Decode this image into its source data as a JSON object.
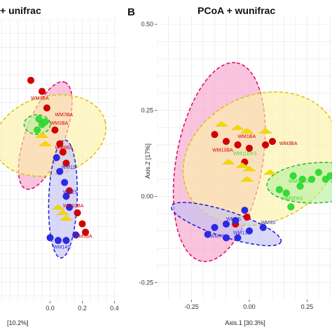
{
  "chart_data": [
    {
      "type": "scatter",
      "panel": "A",
      "title": "+ unifrac",
      "xlabel": "[10.2%]",
      "ylabel": "",
      "xlim": [
        -0.32,
        0.42
      ],
      "ylim": [
        -0.52,
        0.5
      ],
      "x_ticks": [
        "0.0",
        "0.2",
        "0.4"
      ],
      "y_ticks": [],
      "grid": true,
      "series": [
        {
          "color": "#d40000",
          "points": [
            [
              -0.12,
              0.28
            ],
            [
              -0.05,
              0.24
            ],
            [
              -0.02,
              0.18
            ],
            [
              0.03,
              0.1
            ],
            [
              0.06,
              0.05
            ],
            [
              0.08,
              0.02
            ],
            [
              0.1,
              -0.02
            ],
            [
              0.12,
              -0.12
            ],
            [
              0.17,
              -0.2
            ],
            [
              0.2,
              -0.24
            ],
            [
              0.22,
              -0.27
            ]
          ]
        },
        {
          "color": "#2a2ae6",
          "points": [
            [
              0.04,
              0.0
            ],
            [
              0.06,
              -0.05
            ],
            [
              0.09,
              -0.09
            ],
            [
              0.1,
              -0.14
            ],
            [
              0.12,
              -0.18
            ],
            [
              0.0,
              -0.29
            ],
            [
              0.05,
              -0.3
            ],
            [
              0.1,
              -0.3
            ],
            [
              0.16,
              -0.28
            ]
          ]
        },
        {
          "color": "#33dd33",
          "points": [
            [
              -0.07,
              0.14
            ],
            [
              -0.05,
              0.12
            ],
            [
              -0.08,
              0.1
            ],
            [
              -0.03,
              0.13
            ]
          ]
        },
        {
          "color": "#f5d800",
          "points": [
            [
              -0.05,
              0.08
            ],
            [
              -0.03,
              0.05
            ],
            [
              0.05,
              -0.18
            ],
            [
              0.08,
              -0.2
            ],
            [
              0.1,
              -0.22
            ]
          ]
        }
      ],
      "ellipses": [
        {
          "color": "#e0006a",
          "fill": "#f5a0c8",
          "cx": -0.03,
          "cy": 0.08,
          "rx": 0.26,
          "ry": 0.09,
          "angle_deg": -70
        },
        {
          "color": "#d8c400",
          "fill": "#fbf2a6",
          "cx": 0.0,
          "cy": 0.08,
          "rx": 0.26,
          "ry": 0.18,
          "angle_deg": -15
        },
        {
          "color": "#2ab82a",
          "fill": "#b8f0a0",
          "cx": -0.08,
          "cy": 0.12,
          "rx": 0.06,
          "ry": 0.045,
          "angle_deg": 0
        },
        {
          "color": "#2020c8",
          "fill": "#c4c0f5",
          "cx": 0.08,
          "cy": -0.15,
          "rx": 0.27,
          "ry": 0.065,
          "angle_deg": -88
        }
      ],
      "labels": [
        {
          "text": "WM3BA",
          "x": -0.12,
          "y": 0.21,
          "color": "#d40000"
        },
        {
          "text": "WM7BA",
          "x": 0.03,
          "y": 0.15,
          "color": "#d40000"
        },
        {
          "text": "WM1BA",
          "x": 0.0,
          "y": 0.12,
          "color": "#d40000"
        },
        {
          "text": "WM8BA",
          "x": 0.03,
          "y": 0.03,
          "color": "#d40000"
        },
        {
          "text": "WM1S",
          "x": 0.07,
          "y": -0.04,
          "color": "#2a2ae6"
        },
        {
          "text": "WM2S",
          "x": 0.08,
          "y": -0.13,
          "color": "#2a2ae6"
        },
        {
          "text": "WM10BA",
          "x": 0.08,
          "y": -0.18,
          "color": "#d40000"
        },
        {
          "text": "WM5BA",
          "x": 0.15,
          "y": -0.29,
          "color": "#d40000"
        },
        {
          "text": "WM14S",
          "x": 0.02,
          "y": -0.33,
          "color": "#2a2ae6"
        }
      ]
    },
    {
      "type": "scatter",
      "panel": "B",
      "title": "PCoA + wunifrac",
      "xlabel": "Axis.1   [30.3%]",
      "ylabel": "Axis.2   [17%]",
      "xlim": [
        -0.4,
        0.37
      ],
      "ylim": [
        -0.3,
        0.53
      ],
      "x_ticks": [
        "-0.25",
        "0.00",
        "0.25"
      ],
      "y_ticks": [
        "-0.25",
        "0.00",
        "0.25",
        "0.50"
      ],
      "grid": true,
      "series": [
        {
          "color": "#d40000",
          "points": [
            [
              -0.15,
              0.18
            ],
            [
              -0.1,
              0.16
            ],
            [
              -0.05,
              0.15
            ],
            [
              0.0,
              0.14
            ],
            [
              0.07,
              0.15
            ],
            [
              0.1,
              0.16
            ],
            [
              -0.02,
              0.1
            ],
            [
              -0.01,
              -0.06
            ],
            [
              -0.06,
              -0.08
            ]
          ]
        },
        {
          "color": "#2a2ae6",
          "points": [
            [
              -0.02,
              -0.04
            ],
            [
              -0.06,
              -0.07
            ],
            [
              -0.1,
              -0.08
            ],
            [
              -0.15,
              -0.09
            ],
            [
              -0.18,
              -0.11
            ],
            [
              -0.1,
              -0.12
            ],
            [
              -0.05,
              -0.12
            ],
            [
              0.0,
              -0.1
            ],
            [
              0.06,
              -0.09
            ]
          ]
        },
        {
          "color": "#33dd33",
          "points": [
            [
              0.19,
              0.06
            ],
            [
              0.23,
              0.05
            ],
            [
              0.27,
              0.05
            ],
            [
              0.3,
              0.07
            ],
            [
              0.33,
              0.05
            ],
            [
              0.35,
              0.06
            ],
            [
              0.22,
              0.03
            ],
            [
              0.16,
              0.01
            ],
            [
              0.18,
              -0.03
            ],
            [
              0.13,
              0.02
            ]
          ]
        },
        {
          "color": "#f5d800",
          "points": [
            [
              -0.12,
              0.21
            ],
            [
              -0.05,
              0.2
            ],
            [
              -0.01,
              0.19
            ],
            [
              0.07,
              0.19
            ],
            [
              -0.09,
              0.1
            ],
            [
              -0.03,
              0.09
            ],
            [
              0.0,
              0.08
            ],
            [
              -0.01,
              0.05
            ],
            [
              0.09,
              0.07
            ]
          ]
        }
      ],
      "ellipses": [
        {
          "color": "#e0006a",
          "fill": "#f5a0c8",
          "cx": -0.13,
          "cy": 0.1,
          "rx": 0.35,
          "ry": 0.15,
          "angle_deg": -80
        },
        {
          "color": "#d8c400",
          "fill": "#fbf2a6",
          "cx": 0.05,
          "cy": 0.11,
          "rx": 0.28,
          "ry": 0.22,
          "angle_deg": -25
        },
        {
          "color": "#2ab82a",
          "fill": "#b8f0a0",
          "cx": 0.3,
          "cy": 0.04,
          "rx": 0.18,
          "ry": 0.07,
          "angle_deg": -3
        },
        {
          "color": "#2020c8",
          "fill": "#c4c0f5",
          "cx": -0.1,
          "cy": -0.08,
          "rx": 0.2,
          "ry": 0.045,
          "angle_deg": 18
        }
      ],
      "labels": [
        {
          "text": "WM3BA",
          "x": 0.13,
          "y": 0.15,
          "color": "#d40000"
        },
        {
          "text": "WM1BA",
          "x": -0.05,
          "y": 0.17,
          "color": "#d40000"
        },
        {
          "text": "WM10BA",
          "x": -0.16,
          "y": 0.13,
          "color": "#d40000"
        },
        {
          "text": "WM11EKS",
          "x": -0.07,
          "y": 0.12,
          "color": "#33dd33"
        },
        {
          "text": "WM9EKS",
          "x": 0.17,
          "y": 0.04,
          "color": "#33dd33"
        },
        {
          "text": "WM8EKS",
          "x": 0.35,
          "y": 0.04,
          "color": "#33dd33"
        },
        {
          "text": "WM5EKS",
          "x": 0.14,
          "y": -0.01,
          "color": "#33dd33"
        },
        {
          "text": "WM9S",
          "x": -0.1,
          "y": -0.07,
          "color": "#2a2ae6"
        },
        {
          "text": "WM3S",
          "x": 0.05,
          "y": -0.08,
          "color": "#2a2ae6"
        },
        {
          "text": "WM12S",
          "x": -0.07,
          "y": -0.11,
          "color": "#2a2ae6"
        },
        {
          "text": "WM7S",
          "x": -0.17,
          "y": -0.12,
          "color": "#2a2ae6"
        }
      ]
    }
  ]
}
